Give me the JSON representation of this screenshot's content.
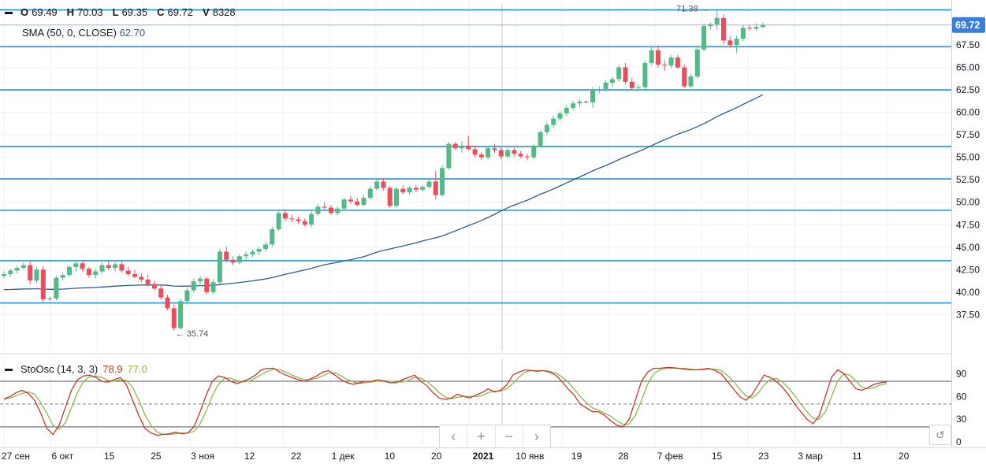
{
  "legend": {
    "o_label": "O",
    "o": "69.49",
    "h_label": "H",
    "h": "70.03",
    "l_label": "L",
    "l": "69.35",
    "c_label": "C",
    "c": "69.72",
    "v_label": "V",
    "v": "8328",
    "sma_label": "SMA (50, 0, CLOSE)",
    "sma_value": "62.70",
    "sto_label": "StoOsc (14, 3, 3)",
    "sto_k": "78.9",
    "sto_d": "77.0"
  },
  "nav": {
    "left": "‹",
    "plus": "+",
    "minus": "−",
    "right": "›",
    "reset": "↺"
  },
  "colors": {
    "up": "#53b987",
    "down": "#eb4d5c",
    "sma": "#2e5c8a",
    "hline": "#2196d3",
    "k": "#c0392b",
    "d": "#8bb84a"
  },
  "chart_data": [
    {
      "type": "candlestick",
      "price_axis": {
        "range": [
          33.5,
          72.5
        ],
        "ticks": [
          "37.50",
          "40.00",
          "42.50",
          "45.00",
          "47.50",
          "50.00",
          "52.50",
          "55.00",
          "57.50",
          "60.00",
          "62.50",
          "65.00",
          "67.50"
        ]
      },
      "last_price": "69.72",
      "annotations": [
        {
          "label": "71.38"
        },
        {
          "label": "35.74"
        }
      ],
      "horizontal_levels": [
        71.4,
        67.3,
        62.5,
        56.2,
        52.6,
        49.1,
        43.5,
        38.8
      ],
      "x_axis": {
        "labels": [
          "27 сен",
          "6 окт",
          "15",
          "25",
          "3 ноя",
          "12",
          "22",
          "1 дек",
          "10",
          "20",
          "2021",
          "10 янв",
          "19",
          "28",
          "7 фев",
          "15",
          "23",
          "3 мар",
          "11",
          "20"
        ]
      },
      "series": [
        {
          "type": "ohlc",
          "values": [
            [
              41.8,
              42.3,
              41.5,
              42.0
            ],
            [
              42.0,
              42.6,
              41.7,
              42.4
            ],
            [
              42.4,
              42.9,
              42.1,
              42.7
            ],
            [
              42.7,
              43.3,
              42.5,
              43.0
            ],
            [
              43.0,
              43.4,
              40.9,
              41.3
            ],
            [
              41.3,
              42.8,
              41.0,
              42.5
            ],
            [
              42.5,
              42.9,
              38.9,
              39.2
            ],
            [
              39.2,
              39.5,
              39.0,
              39.3
            ],
            [
              39.3,
              41.8,
              39.1,
              41.6
            ],
            [
              41.6,
              42.2,
              41.3,
              41.9
            ],
            [
              41.9,
              43.0,
              41.7,
              42.8
            ],
            [
              42.8,
              43.5,
              42.3,
              43.2
            ],
            [
              43.2,
              43.5,
              42.3,
              42.6
            ],
            [
              42.6,
              42.8,
              41.6,
              41.9
            ],
            [
              41.9,
              42.6,
              41.5,
              42.3
            ],
            [
              42.3,
              43.3,
              42.0,
              43.0
            ],
            [
              43.0,
              43.4,
              42.4,
              42.7
            ],
            [
              42.7,
              43.3,
              42.3,
              43.1
            ],
            [
              43.1,
              43.4,
              42.2,
              42.4
            ],
            [
              42.4,
              42.8,
              41.8,
              42.0
            ],
            [
              42.0,
              42.5,
              41.5,
              41.7
            ],
            [
              41.7,
              42.1,
              41.1,
              41.4
            ],
            [
              41.4,
              41.9,
              40.6,
              40.9
            ],
            [
              40.9,
              41.3,
              40.2,
              40.4
            ],
            [
              40.4,
              40.8,
              39.2,
              39.4
            ],
            [
              39.4,
              39.7,
              38.0,
              38.2
            ],
            [
              38.2,
              38.6,
              35.7,
              36.0
            ],
            [
              36.0,
              39.3,
              35.8,
              39.0
            ],
            [
              39.0,
              40.5,
              38.8,
              40.2
            ],
            [
              40.2,
              41.5,
              40.0,
              41.2
            ],
            [
              41.2,
              41.8,
              40.7,
              41.5
            ],
            [
              41.5,
              41.7,
              39.8,
              40.0
            ],
            [
              40.0,
              41.4,
              39.8,
              41.1
            ],
            [
              41.1,
              44.8,
              40.9,
              44.5
            ],
            [
              44.5,
              45.1,
              43.3,
              43.6
            ],
            [
              43.6,
              44.0,
              43.0,
              43.3
            ],
            [
              43.3,
              44.2,
              43.1,
              44.0
            ],
            [
              44.0,
              44.5,
              43.5,
              44.2
            ],
            [
              44.2,
              44.8,
              43.9,
              44.5
            ],
            [
              44.5,
              45.0,
              44.1,
              44.8
            ],
            [
              44.8,
              45.6,
              44.5,
              45.3
            ],
            [
              45.3,
              47.3,
              45.0,
              47.0
            ],
            [
              47.0,
              49.0,
              46.8,
              48.8
            ],
            [
              48.8,
              49.2,
              47.9,
              48.2
            ],
            [
              48.2,
              48.6,
              47.8,
              48.1
            ],
            [
              48.1,
              48.4,
              47.6,
              47.9
            ],
            [
              47.9,
              48.2,
              47.3,
              47.5
            ],
            [
              47.5,
              49.0,
              47.2,
              48.7
            ],
            [
              48.7,
              49.8,
              48.5,
              49.5
            ],
            [
              49.5,
              50.0,
              49.1,
              49.4
            ],
            [
              49.4,
              49.7,
              48.6,
              48.8
            ],
            [
              48.8,
              49.5,
              48.5,
              49.3
            ],
            [
              49.3,
              50.5,
              49.1,
              50.3
            ],
            [
              50.3,
              50.7,
              49.8,
              50.1
            ],
            [
              50.1,
              50.5,
              49.5,
              49.7
            ],
            [
              49.7,
              50.8,
              49.5,
              50.5
            ],
            [
              50.5,
              51.8,
              50.3,
              51.5
            ],
            [
              51.5,
              52.5,
              51.3,
              52.3
            ],
            [
              52.3,
              52.7,
              51.3,
              51.6
            ],
            [
              51.6,
              51.8,
              49.4,
              49.6
            ],
            [
              49.6,
              51.7,
              49.4,
              51.5
            ],
            [
              51.5,
              51.9,
              50.9,
              51.1
            ],
            [
              51.1,
              51.8,
              50.8,
              51.6
            ],
            [
              51.6,
              51.9,
              51.1,
              51.4
            ],
            [
              51.4,
              51.9,
              51.2,
              51.7
            ],
            [
              51.7,
              52.6,
              51.5,
              52.3
            ],
            [
              52.3,
              53.5,
              50.3,
              50.8
            ],
            [
              50.8,
              54.1,
              50.6,
              53.8
            ],
            [
              53.8,
              56.7,
              53.6,
              56.5
            ],
            [
              56.5,
              56.7,
              55.8,
              56.0
            ],
            [
              56.0,
              56.8,
              55.5,
              56.3
            ],
            [
              56.3,
              57.4,
              55.8,
              55.9
            ],
            [
              55.9,
              56.3,
              55.0,
              55.3
            ],
            [
              55.3,
              55.6,
              54.7,
              55.0
            ],
            [
              55.0,
              56.2,
              54.8,
              56.0
            ],
            [
              56.0,
              56.5,
              55.5,
              55.8
            ],
            [
              55.8,
              56.1,
              54.8,
              55.1
            ],
            [
              55.1,
              56.0,
              54.9,
              55.8
            ],
            [
              55.8,
              56.1,
              55.1,
              55.4
            ],
            [
              55.4,
              55.7,
              54.9,
              55.1
            ],
            [
              55.1,
              55.4,
              54.7,
              55.0
            ],
            [
              55.0,
              56.5,
              54.8,
              56.3
            ],
            [
              56.3,
              58.0,
              56.1,
              57.8
            ],
            [
              57.8,
              58.9,
              57.5,
              58.6
            ],
            [
              58.6,
              59.6,
              58.3,
              59.3
            ],
            [
              59.3,
              60.1,
              59.1,
              59.9
            ],
            [
              59.9,
              60.8,
              59.6,
              60.5
            ],
            [
              60.5,
              61.3,
              60.2,
              61.0
            ],
            [
              61.0,
              61.5,
              60.6,
              61.2
            ],
            [
              61.2,
              61.3,
              61.0,
              61.1
            ],
            [
              61.1,
              62.8,
              60.5,
              62.5
            ],
            [
              62.5,
              62.9,
              62.1,
              62.6
            ],
            [
              62.6,
              63.6,
              62.3,
              63.3
            ],
            [
              63.3,
              64.0,
              62.9,
              63.7
            ],
            [
              63.7,
              65.3,
              63.4,
              65.0
            ],
            [
              65.0,
              65.5,
              63.1,
              63.4
            ],
            [
              63.4,
              63.8,
              62.4,
              62.7
            ],
            [
              62.7,
              63.1,
              62.3,
              62.8
            ],
            [
              62.8,
              65.8,
              62.6,
              65.5
            ],
            [
              65.5,
              67.3,
              65.2,
              66.9
            ],
            [
              66.9,
              67.4,
              65.0,
              65.3
            ],
            [
              65.3,
              65.8,
              64.6,
              65.2
            ],
            [
              65.2,
              66.4,
              64.9,
              66.1
            ],
            [
              66.1,
              66.4,
              64.8,
              65.0
            ],
            [
              65.0,
              65.3,
              62.7,
              62.9
            ],
            [
              62.9,
              64.3,
              62.7,
              64.0
            ],
            [
              64.0,
              67.3,
              63.8,
              67.0
            ],
            [
              67.0,
              69.9,
              66.8,
              69.6
            ],
            [
              69.6,
              70.0,
              69.2,
              69.8
            ],
            [
              69.8,
              71.4,
              69.2,
              70.5
            ],
            [
              70.5,
              70.9,
              67.6,
              68.0
            ],
            [
              68.0,
              68.5,
              67.2,
              67.5
            ],
            [
              67.5,
              68.5,
              66.6,
              68.2
            ],
            [
              68.2,
              69.7,
              67.9,
              69.4
            ],
            [
              69.4,
              69.7,
              69.1,
              69.3
            ],
            [
              69.3,
              69.9,
              69.1,
              69.5
            ],
            [
              69.49,
              70.03,
              69.35,
              69.72
            ]
          ]
        },
        {
          "type": "sma",
          "name": "SMA (50, 0, CLOSE)"
        }
      ]
    },
    {
      "type": "line",
      "y_axis": {
        "range": [
          -5,
          110
        ],
        "ticks": [
          "0",
          "30",
          "60",
          "90"
        ],
        "levels": [
          80,
          50,
          20
        ]
      },
      "series": [
        {
          "name": "%K",
          "values": [
            57,
            60,
            65,
            68,
            64,
            55,
            38,
            18,
            10,
            22,
            45,
            68,
            82,
            87,
            88,
            85,
            80,
            79,
            82,
            85,
            75,
            55,
            35,
            18,
            12,
            9,
            10,
            11,
            13,
            11,
            12,
            20,
            40,
            62,
            80,
            87,
            85,
            80,
            77,
            80,
            83,
            88,
            95,
            97,
            97,
            92,
            88,
            85,
            82,
            80,
            83,
            87,
            92,
            94,
            88,
            82,
            78,
            76,
            78,
            80,
            80,
            82,
            80,
            78,
            78,
            82,
            85,
            88,
            80,
            74,
            65,
            58,
            56,
            58,
            63,
            60,
            58,
            62,
            65,
            70,
            66,
            68,
            75,
            88,
            92,
            95,
            94,
            93,
            94,
            92,
            88,
            80,
            70,
            62,
            50,
            45,
            40,
            40,
            35,
            28,
            22,
            20,
            30,
            55,
            80,
            92,
            97,
            97,
            98,
            98,
            97,
            96,
            95,
            95,
            96,
            97,
            94,
            90,
            80,
            70,
            60,
            55,
            62,
            75,
            88,
            85,
            80,
            72,
            62,
            50,
            40,
            30,
            24,
            35,
            60,
            85,
            95,
            90,
            80,
            70,
            68,
            72,
            76,
            78,
            79
          ]
        },
        {
          "name": "%D",
          "values": [
            56,
            58,
            61,
            64,
            66,
            63,
            52,
            38,
            22,
            17,
            25,
            45,
            65,
            80,
            86,
            87,
            85,
            81,
            80,
            82,
            81,
            72,
            55,
            36,
            22,
            13,
            10,
            10,
            11,
            12,
            12,
            14,
            24,
            41,
            61,
            76,
            84,
            84,
            81,
            79,
            80,
            84,
            89,
            93,
            96,
            95,
            92,
            88,
            85,
            82,
            82,
            84,
            87,
            91,
            91,
            87,
            82,
            79,
            77,
            78,
            79,
            80,
            81,
            80,
            79,
            79,
            81,
            85,
            84,
            80,
            73,
            65,
            59,
            57,
            59,
            60,
            60,
            60,
            61,
            65,
            67,
            67,
            70,
            77,
            85,
            92,
            94,
            94,
            94,
            93,
            91,
            86,
            79,
            70,
            60,
            52,
            45,
            42,
            38,
            34,
            28,
            23,
            24,
            35,
            55,
            76,
            90,
            95,
            97,
            97,
            97,
            97,
            96,
            95,
            95,
            96,
            96,
            94,
            88,
            80,
            70,
            61,
            58,
            64,
            75,
            82,
            84,
            79,
            71,
            61,
            50,
            40,
            31,
            30,
            40,
            60,
            80,
            90,
            88,
            80,
            72,
            70,
            72,
            75,
            77
          ]
        }
      ]
    }
  ]
}
